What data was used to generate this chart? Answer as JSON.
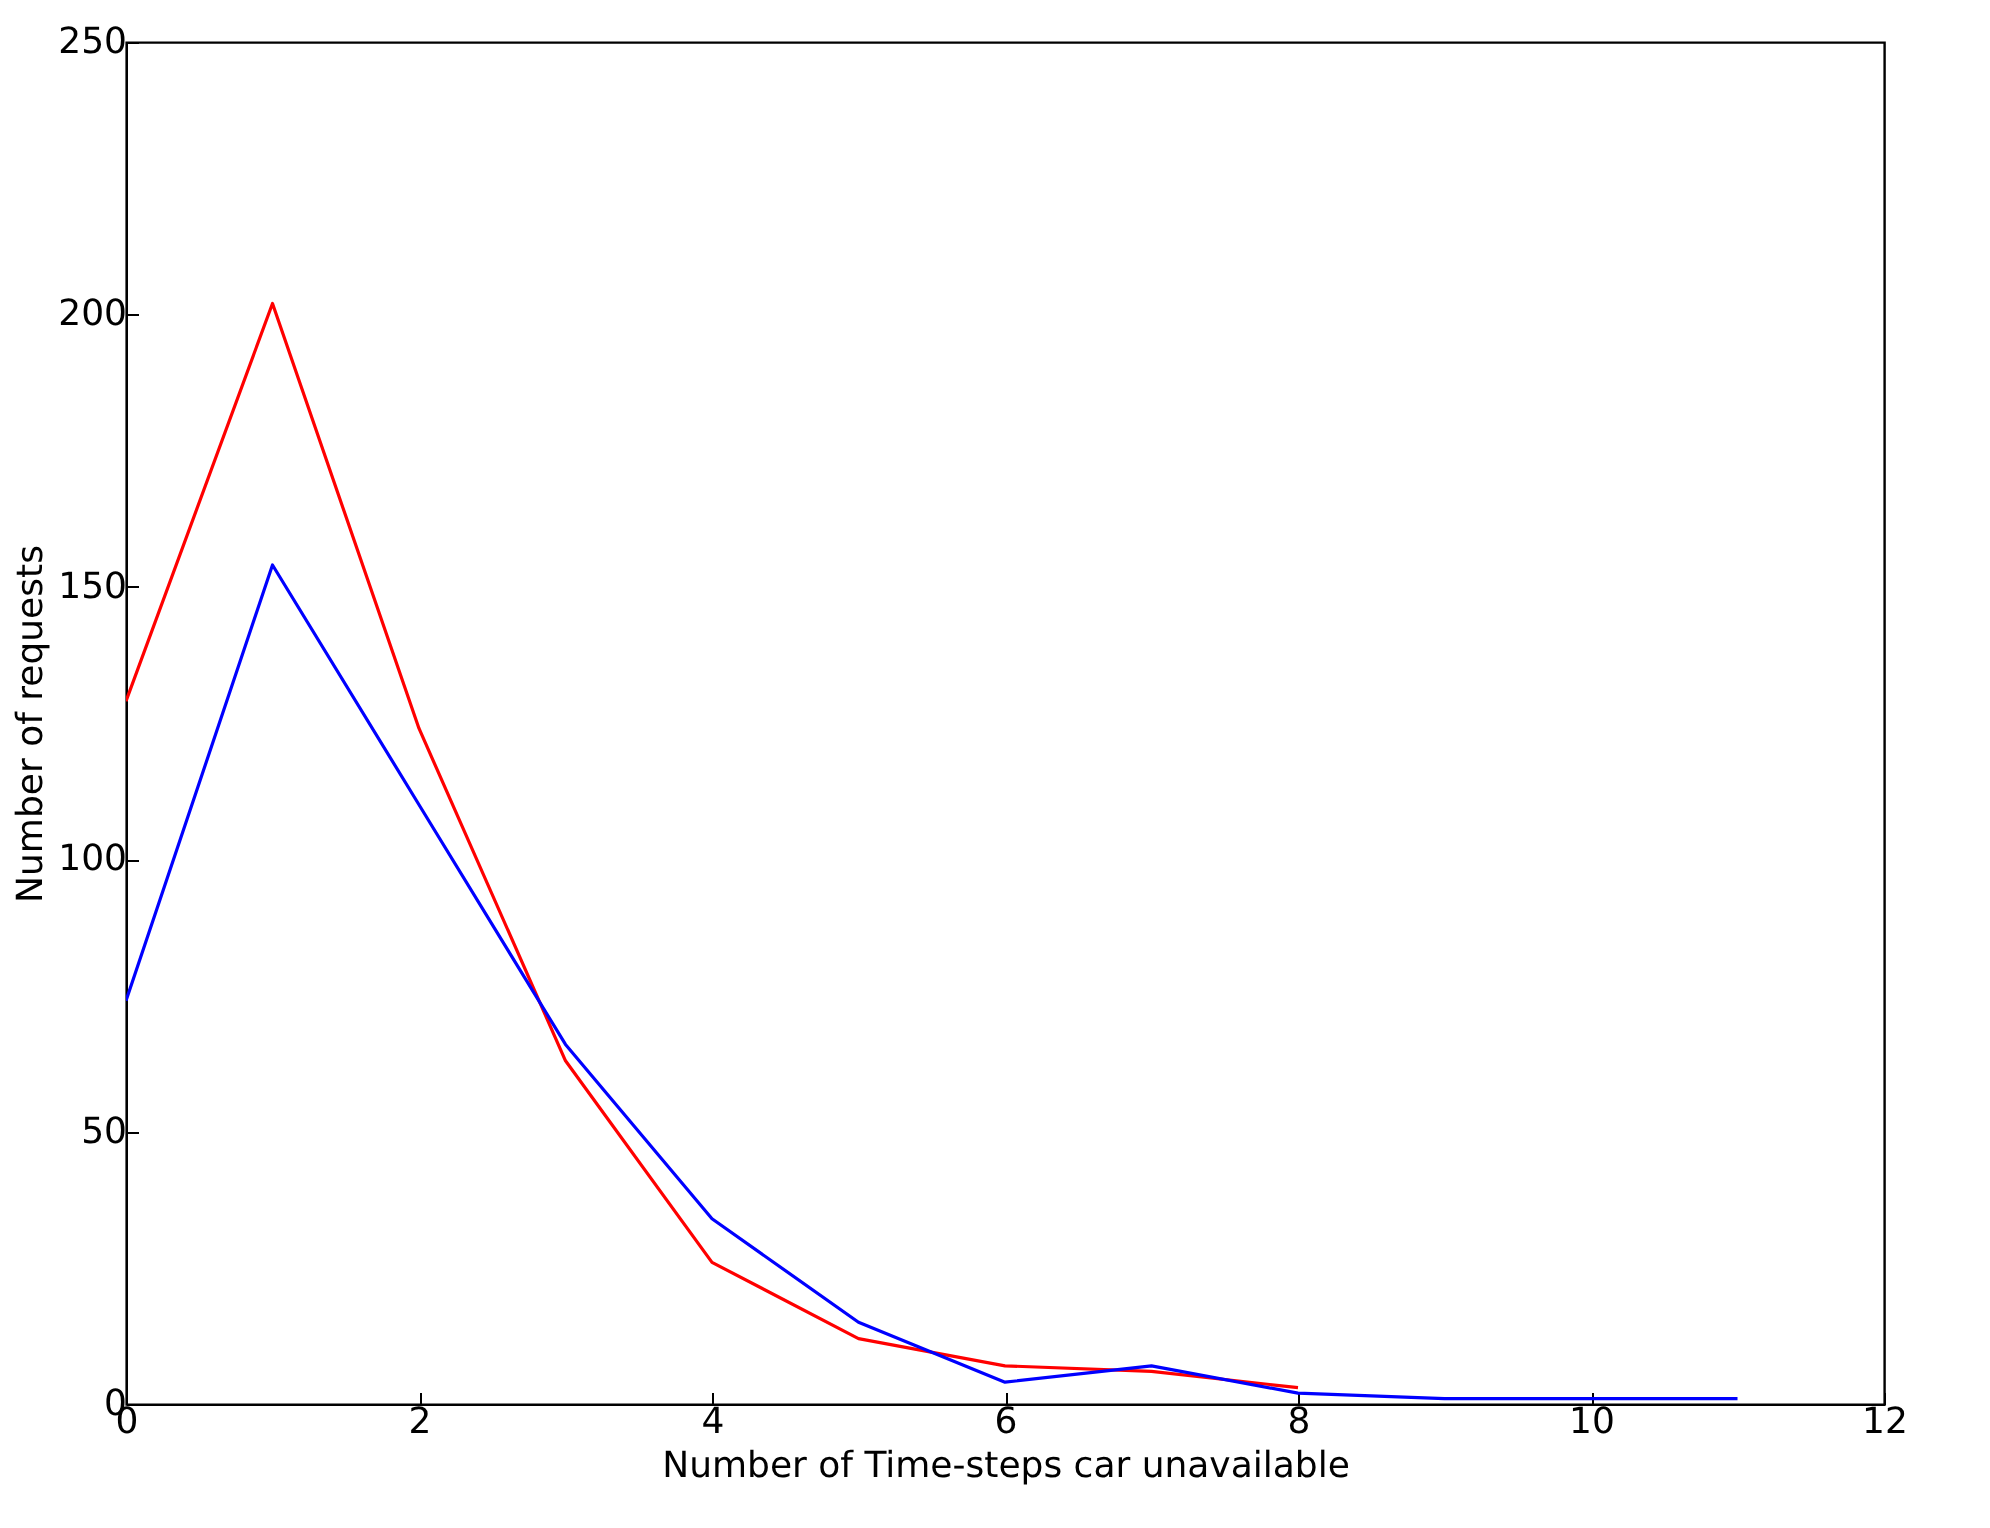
{
  "chart_data": {
    "type": "line",
    "xlabel": "Number of Time-steps car unavailable",
    "ylabel": "Number of requests",
    "xlim": [
      0,
      12
    ],
    "xticks": [
      0,
      2,
      4,
      6,
      8,
      10,
      12
    ],
    "ylim": [
      0,
      250
    ],
    "yticks": [
      0,
      50,
      100,
      150,
      200,
      250
    ],
    "grid": false,
    "series": [
      {
        "color": "#ff0000",
        "x": [
          0,
          1,
          2,
          3,
          4,
          5,
          6,
          7,
          8
        ],
        "values": [
          129,
          202,
          124,
          63,
          26,
          12,
          7,
          6,
          3
        ]
      },
      {
        "color": "#0000ff",
        "x": [
          0,
          1,
          2,
          3,
          4,
          5,
          6,
          7,
          8,
          9,
          10,
          11
        ],
        "values": [
          74,
          154,
          110,
          66,
          34,
          15,
          4,
          7,
          2,
          1,
          1,
          1
        ]
      }
    ]
  }
}
